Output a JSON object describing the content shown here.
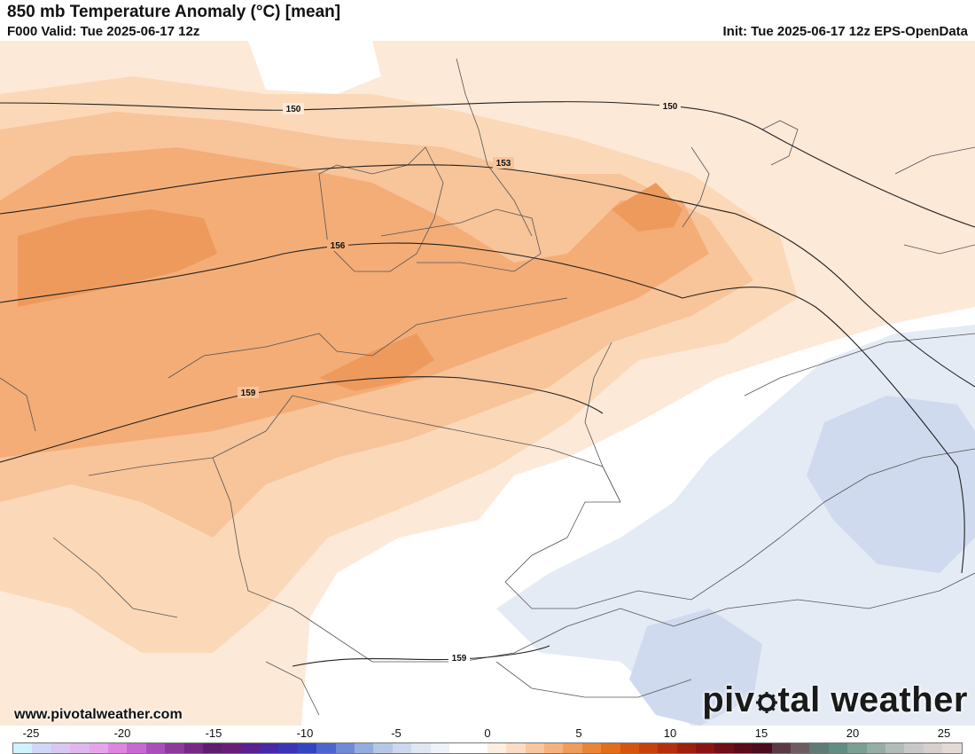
{
  "header": {
    "title": "850 mb Temperature Anomaly (°C) [mean]",
    "valid": "F000 Valid: Tue 2025-06-17 12z",
    "init": "Init: Tue 2025-06-17 12z EPS-OpenData"
  },
  "contours": {
    "labels": [
      "150",
      "150",
      "153",
      "156",
      "159",
      "159"
    ]
  },
  "footer": {
    "website": "www.pivotalweather.com",
    "logo_before": "piv",
    "logo_after": "tal weather"
  },
  "colorbar": {
    "ticks": [
      "-25",
      "-20",
      "-15",
      "-10",
      "-5",
      "0",
      "5",
      "10",
      "15",
      "20",
      "25"
    ],
    "colors": [
      "#cdf3fb",
      "#cfd7f5",
      "#d7c7f1",
      "#e0b6ee",
      "#e7a4ea",
      "#dc86e1",
      "#c66ad0",
      "#aa4fb9",
      "#8d3a9b",
      "#762a85",
      "#5e1d6e",
      "#6a1d77",
      "#5b1f8e",
      "#4a27a6",
      "#3a34b8",
      "#3246c2",
      "#4a66cc",
      "#6f8bd8",
      "#95acde",
      "#b5c7e6",
      "#cbd8ed",
      "#dfe7f3",
      "#eef2f9",
      "#ffffff",
      "#ffffff",
      "#fdeee0",
      "#fbdcc2",
      "#f8c79f",
      "#f4b27e",
      "#f09c5c",
      "#ea8538",
      "#e26d1a",
      "#d65410",
      "#c8400d",
      "#b52f0c",
      "#9f200d",
      "#891511",
      "#6f0f17",
      "#5a0c1c",
      "#4a0c1f",
      "#5b3a45",
      "#6c5c60",
      "#5f7b76",
      "#5f8e82",
      "#7a9f93",
      "#96afa6",
      "#b1bdb8",
      "#c8c8c8",
      "#d7cfcc",
      "#e5d9d6"
    ]
  }
}
